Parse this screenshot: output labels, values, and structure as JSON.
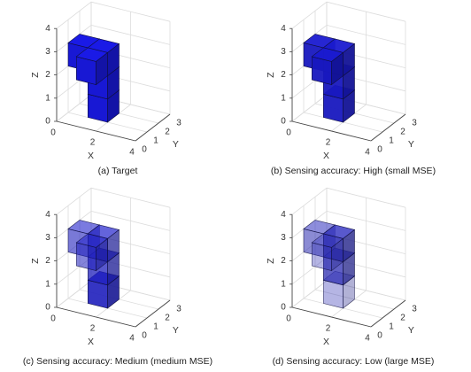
{
  "chart_data": [
    {
      "type": "3d-voxel",
      "caption": "(a) Target",
      "xlabel": "X",
      "ylabel": "Y",
      "zlabel": "Z",
      "xlim": [
        0,
        4
      ],
      "ylim": [
        0,
        3
      ],
      "zlim": [
        0,
        4
      ],
      "x_ticks": [
        "0",
        "2",
        "4"
      ],
      "y_ticks": [
        "0",
        "1",
        "2",
        "3"
      ],
      "z_ticks": [
        "0",
        "1",
        "2",
        "3",
        "4"
      ],
      "voxel_color": "#1a1ae6",
      "voxels": [
        {
          "x": 1,
          "y": 1,
          "z": 0,
          "opacity": 1.0
        },
        {
          "x": 1,
          "y": 1,
          "z": 1,
          "opacity": 1.0
        },
        {
          "x": 1,
          "y": 1,
          "z": 2,
          "opacity": 1.0
        },
        {
          "x": 0,
          "y": 1,
          "z": 2,
          "opacity": 1.0
        },
        {
          "x": 1,
          "y": 0,
          "z": 2,
          "opacity": 1.0
        }
      ]
    },
    {
      "type": "3d-voxel",
      "caption": "(b) Sensing accuracy: High (small MSE)",
      "xlabel": "X",
      "ylabel": "Y",
      "zlabel": "Z",
      "xlim": [
        0,
        4
      ],
      "ylim": [
        0,
        3
      ],
      "zlim": [
        0,
        4
      ],
      "x_ticks": [
        "0",
        "2",
        "4"
      ],
      "y_ticks": [
        "0",
        "1",
        "2",
        "3"
      ],
      "z_ticks": [
        "0",
        "1",
        "2",
        "3",
        "4"
      ],
      "voxel_color": "#1a1ad0",
      "voxels": [
        {
          "x": 1,
          "y": 1,
          "z": 0,
          "opacity": 0.95
        },
        {
          "x": 1,
          "y": 1,
          "z": 1,
          "opacity": 0.95
        },
        {
          "x": 1,
          "y": 1,
          "z": 2,
          "opacity": 0.95
        },
        {
          "x": 0,
          "y": 1,
          "z": 2,
          "opacity": 0.95
        },
        {
          "x": 1,
          "y": 0,
          "z": 2,
          "opacity": 0.95
        }
      ]
    },
    {
      "type": "3d-voxel",
      "caption": "(c) Sensing accuracy: Medium (medium MSE)",
      "xlabel": "X",
      "ylabel": "Y",
      "zlabel": "Z",
      "xlim": [
        0,
        4
      ],
      "ylim": [
        0,
        3
      ],
      "zlim": [
        0,
        4
      ],
      "x_ticks": [
        "0",
        "2",
        "4"
      ],
      "y_ticks": [
        "0",
        "1",
        "2",
        "3"
      ],
      "z_ticks": [
        "0",
        "1",
        "2",
        "3",
        "4"
      ],
      "voxel_color": "#2222cc",
      "voxels": [
        {
          "x": 1,
          "y": 1,
          "z": 0,
          "opacity": 0.9
        },
        {
          "x": 1,
          "y": 1,
          "z": 1,
          "opacity": 0.75
        },
        {
          "x": 1,
          "y": 1,
          "z": 2,
          "opacity": 0.7
        },
        {
          "x": 0,
          "y": 1,
          "z": 2,
          "opacity": 0.6
        },
        {
          "x": 1,
          "y": 0,
          "z": 2,
          "opacity": 0.55
        }
      ]
    },
    {
      "type": "3d-voxel",
      "caption": "(d) Sensing accuracy: Low (large MSE)",
      "xlabel": "X",
      "ylabel": "Y",
      "zlabel": "Z",
      "xlim": [
        0,
        4
      ],
      "ylim": [
        0,
        3
      ],
      "zlim": [
        0,
        4
      ],
      "x_ticks": [
        "0",
        "2",
        "4"
      ],
      "y_ticks": [
        "0",
        "1",
        "2",
        "3"
      ],
      "z_ticks": [
        "0",
        "1",
        "2",
        "3",
        "4"
      ],
      "voxel_color": "#3030c0",
      "voxels": [
        {
          "x": 1,
          "y": 1,
          "z": 0,
          "opacity": 0.35
        },
        {
          "x": 1,
          "y": 1,
          "z": 1,
          "opacity": 0.75
        },
        {
          "x": 1,
          "y": 1,
          "z": 2,
          "opacity": 0.8
        },
        {
          "x": 0,
          "y": 1,
          "z": 2,
          "opacity": 0.55
        },
        {
          "x": 1,
          "y": 0,
          "z": 2,
          "opacity": 0.35
        }
      ]
    }
  ]
}
